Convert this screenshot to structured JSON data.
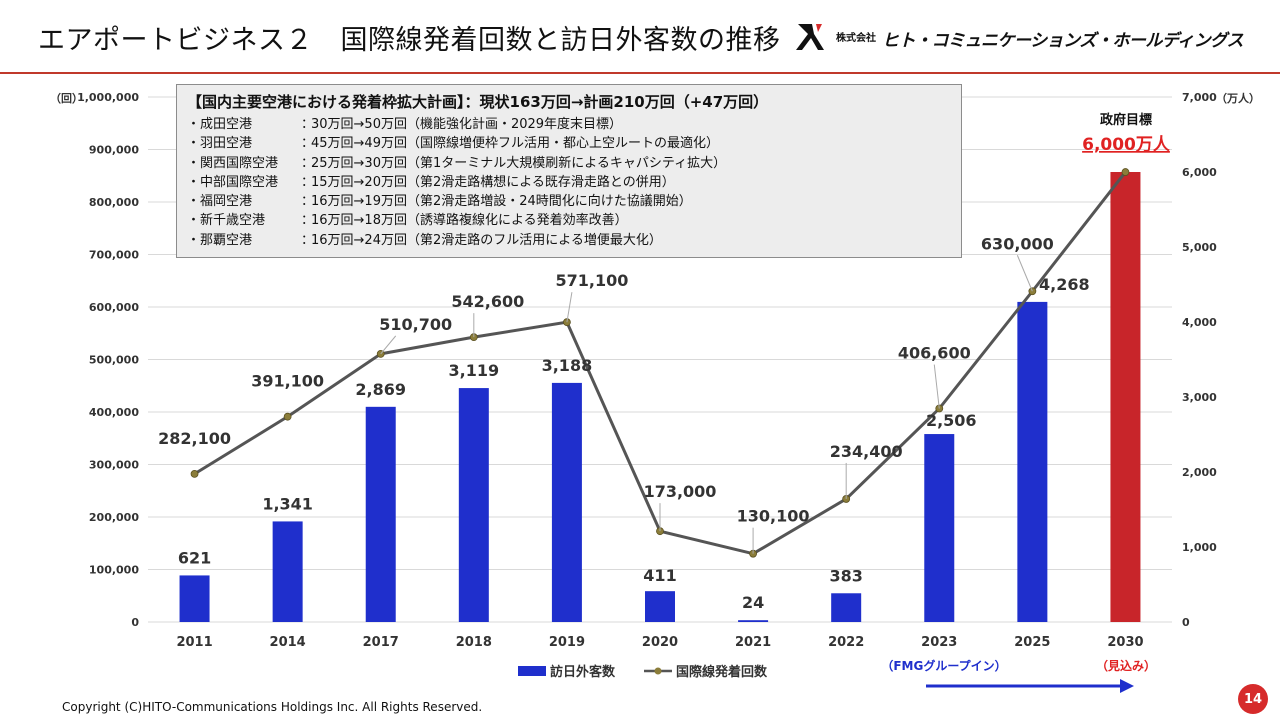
{
  "header": {
    "title": "エアポートビジネス２　国際線発着回数と訪日外客数の推移",
    "logo_kabu": "株式会社",
    "logo_name": "ヒト・コミュニケーションズ・ホールディングス"
  },
  "info_box": {
    "title": "【国内主要空港における発着枠拡大計画】：現状163万回→計画210万回（+47万回）",
    "rows": [
      {
        "airport": "・成田空港",
        "detail": "30万回→50万回（機能強化計画・2029年度末目標）"
      },
      {
        "airport": "・羽田空港",
        "detail": "45万回→49万回（国際線増便枠フル活用・都心上空ルートの最適化）"
      },
      {
        "airport": "・関西国際空港",
        "detail": "25万回→30万回（第1ターミナル大規模刷新によるキャパシティ拡大）"
      },
      {
        "airport": "・中部国際空港",
        "detail": "15万回→20万回（第2滑走路構想による既存滑走路との併用）"
      },
      {
        "airport": "・福岡空港",
        "detail": "16万回→19万回（第2滑走路増設・24時間化に向けた協議開始）"
      },
      {
        "airport": "・新千歳空港",
        "detail": "16万回→18万回（誘導路複線化による発着効率改善）"
      },
      {
        "airport": "・那覇空港",
        "detail": "16万回→24万回（第2滑走路のフル活用による増便最大化）"
      }
    ]
  },
  "chart_data": {
    "type": "bar+line",
    "categories": [
      "2011",
      "2014",
      "2017",
      "2018",
      "2019",
      "2020",
      "2021",
      "2022",
      "2023",
      "2025",
      "2030"
    ],
    "series": [
      {
        "name": "訪日外客数",
        "type": "bar",
        "axis": "right",
        "values": [
          621,
          1341,
          2869,
          3119,
          3188,
          411,
          24,
          383,
          2506,
          4268,
          6000
        ],
        "labels": [
          "621",
          "1,341",
          "2,869",
          "3,119",
          "3,188",
          "411",
          "24",
          "383",
          "2,506",
          "4,268",
          ""
        ]
      },
      {
        "name": "国際線発着回数",
        "type": "line",
        "axis": "left",
        "values": [
          282100,
          391100,
          510700,
          542600,
          571100,
          173000,
          130100,
          234400,
          406600,
          630000,
          857000
        ],
        "labels": [
          "282,100",
          "391,100",
          "510,700",
          "542,600",
          "571,100",
          "173,000",
          "130,100",
          "234,400",
          "406,600",
          "630,000",
          ""
        ]
      }
    ],
    "left_axis": {
      "unit": "（回）",
      "min": 0,
      "max": 1000000,
      "ticks": [
        "0",
        "100,000",
        "200,000",
        "300,000",
        "400,000",
        "500,000",
        "600,000",
        "700,000",
        "800,000",
        "900,000",
        "1,000,000"
      ]
    },
    "right_axis": {
      "unit": "（万人）",
      "min": 0,
      "max": 7000,
      "ticks": [
        "0",
        "1,000",
        "2,000",
        "3,000",
        "4,000",
        "5,000",
        "6,000",
        "7,000"
      ]
    },
    "target_label": "政府目標",
    "target_value": "6,000万人",
    "fmg_label": "（FMGグループイン）",
    "projection_label": "（見込み）",
    "grid": true,
    "legend": "bottom-center"
  },
  "colors": {
    "bar": "#1f2fcc",
    "bar_target": "#c8252a",
    "line": "#555555",
    "marker": "#8b7d3a",
    "arrow": "#1f2fcc",
    "accent_red": "#e02222"
  },
  "footer": {
    "copyright": "Copyright (C)HITO-Communications Holdings Inc. All Rights Reserved.",
    "page": "14"
  }
}
